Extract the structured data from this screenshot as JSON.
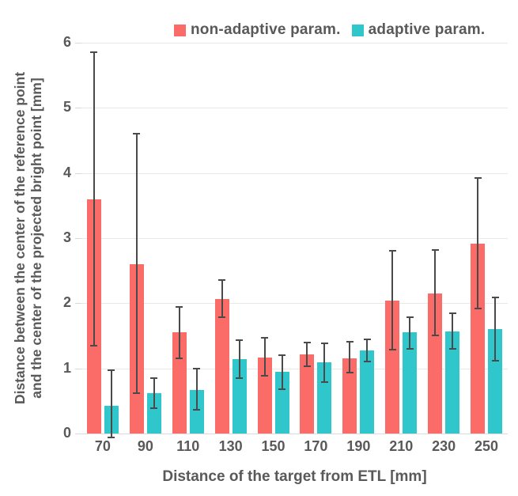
{
  "chart_data": {
    "type": "bar",
    "title": "",
    "categories": [
      "70",
      "90",
      "110",
      "130",
      "150",
      "170",
      "190",
      "210",
      "230",
      "250"
    ],
    "series": [
      {
        "name": "non-adaptive param.",
        "color": "#FB6C68",
        "values": [
          3.6,
          2.6,
          1.55,
          2.07,
          1.17,
          1.21,
          1.16,
          2.04,
          2.15,
          2.91
        ],
        "error_low": [
          1.35,
          0.62,
          1.15,
          1.78,
          0.89,
          1.03,
          0.93,
          1.29,
          1.51,
          1.92
        ],
        "error_high": [
          5.85,
          4.6,
          1.95,
          2.36,
          1.47,
          1.4,
          1.41,
          2.81,
          2.82,
          3.92
        ]
      },
      {
        "name": "adaptive param.",
        "color": "#2FC7CC",
        "values": [
          0.43,
          0.62,
          0.67,
          1.14,
          0.95,
          1.09,
          1.28,
          1.55,
          1.57,
          1.6
        ],
        "error_low": [
          -0.06,
          0.39,
          0.36,
          0.85,
          0.68,
          0.79,
          1.11,
          1.3,
          1.3,
          1.12
        ],
        "error_high": [
          0.97,
          0.85,
          1.0,
          1.43,
          1.2,
          1.38,
          1.44,
          1.79,
          1.85,
          2.09
        ]
      }
    ],
    "xlabel": "Distance of the target from ETL [mm]",
    "ylabel_line1": "Distance between the center of the reference point",
    "ylabel_line2": "and the center of the projected bright point [mm]",
    "ylim": [
      0,
      6
    ],
    "yticks": [
      0,
      1,
      2,
      3,
      4,
      5,
      6
    ],
    "grid": "horizontal",
    "legend_position": "top",
    "error_bar_color": "#4A4A4A",
    "text_color": "#595959",
    "gridline_color": "#E8E8E8"
  }
}
